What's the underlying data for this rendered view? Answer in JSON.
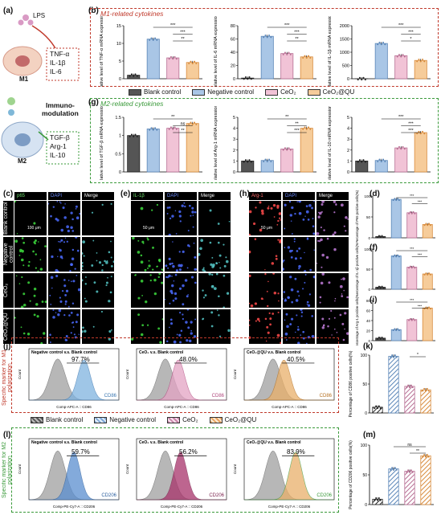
{
  "panel_letters": [
    "(a)",
    "(b)",
    "(c)",
    "(d)",
    "(e)",
    "(f)",
    "(g)",
    "(h)",
    "(i)",
    "(j)",
    "(k)",
    "(l)",
    "(m)"
  ],
  "schematic": {
    "lps": "LPS",
    "m1": "M1",
    "m2": "M2",
    "m1_cytokines": [
      "TNF-α",
      "IL-1β",
      "IL-6"
    ],
    "m2_cytokines": [
      "TGF-β",
      "Arg-1",
      "IL-10"
    ],
    "immuno": "Immuno-",
    "modulation": "modulation"
  },
  "sections": {
    "m1_title": "M1-related cytokines",
    "m2_title": "M2-related cytokines"
  },
  "legend": {
    "items": [
      "Blank control",
      "Negative control",
      "CeO₂",
      "CeO₂@QU"
    ],
    "colors": [
      "#555555",
      "#a9c6e6",
      "#f1c3d6",
      "#f6cc9a"
    ]
  },
  "microscopy": {
    "c_headers": [
      "p65",
      "DAPI",
      "Merge"
    ],
    "e_headers": [
      "IL-1β",
      "DAPI",
      "Merge"
    ],
    "h_headers": [
      "Arg-1",
      "DAPI",
      "Merge"
    ],
    "row_labels": [
      "Blank control",
      "Negative control",
      "CeO₂",
      "CeO₂@QU"
    ],
    "scale1": "100 μm",
    "scale2": "50 μm",
    "scale3": "50 μm"
  },
  "flow": {
    "j_side": "Specific marker for M1 polarization",
    "l_side": "Specific marker for M2 polarization",
    "j_panels": [
      {
        "title": "Negative control v.s. Blank control",
        "percent": "97.7%",
        "marker": "CD86",
        "xlabel": "Comp-APC-A :: CD86"
      },
      {
        "title": "CeO₂ v.s. Blank control",
        "percent": "48.0%",
        "marker": "CD86",
        "xlabel": "Comp-APC-A :: CD86"
      },
      {
        "title": "CeO₂@QU v.s. Blank control",
        "percent": "40.5%",
        "marker": "CD86",
        "xlabel": "Comp-APC-A :: CD86"
      }
    ],
    "l_panels": [
      {
        "title": "Negative control v.s. Blank control",
        "percent": "59.7%",
        "marker": "CD206",
        "xlabel": "Comp-PE-Cy7-A :: CD206"
      },
      {
        "title": "CeO₂ v.s. Blank control",
        "percent": "56.2%",
        "marker": "CD206",
        "xlabel": "Comp-PE-Cy7-A :: CD206"
      },
      {
        "title": "CeO₂@QU v.s. Blank control",
        "percent": "83.9%",
        "marker": "CD206",
        "xlabel": "Comp-PE-Cy7-A :: CD206"
      }
    ],
    "count_label": "Count"
  },
  "chart_data": [
    {
      "id": "b1",
      "type": "bar",
      "ylabel": "Relative level of TNF-α mRNA expression",
      "ylim": [
        0,
        15
      ],
      "yticks": [
        0,
        5,
        10,
        15
      ],
      "values": [
        1,
        11.2,
        5.9,
        4.6
      ],
      "sig": [
        "***",
        "***",
        "**"
      ]
    },
    {
      "id": "b2",
      "type": "bar",
      "ylabel": "Relative level of IL-6 mRNA expression",
      "ylim": [
        0,
        80
      ],
      "yticks": [
        0,
        20,
        40,
        60,
        80
      ],
      "values": [
        1,
        64,
        38,
        33
      ],
      "sig": [
        "***",
        "***",
        "**"
      ]
    },
    {
      "id": "b3",
      "type": "bar",
      "ylabel": "Relative level of IL-1β mRNA expression",
      "ylim": [
        0,
        2000
      ],
      "yticks": [
        0,
        500,
        1000,
        1500,
        2000
      ],
      "values": [
        1,
        1330,
        870,
        690
      ],
      "sig": [
        "***",
        "***",
        "*"
      ]
    },
    {
      "id": "g1",
      "type": "bar",
      "ylabel": "Relative level of TGF-β mRNA expression",
      "ylim": [
        0,
        1.5
      ],
      "yticks": [
        0,
        0.5,
        1.0,
        1.5
      ],
      "values": [
        1.0,
        1.18,
        1.2,
        1.33
      ],
      "sig": [
        "**",
        "ns",
        "**"
      ]
    },
    {
      "id": "g2",
      "type": "bar",
      "ylabel": "Relative level of Arg-1 mRNA expression",
      "ylim": [
        0,
        5
      ],
      "yticks": [
        0,
        1,
        2,
        3,
        4,
        5
      ],
      "values": [
        1,
        1.05,
        2.1,
        4.0
      ],
      "sig": [
        "**",
        "**",
        "***"
      ]
    },
    {
      "id": "g3",
      "type": "bar",
      "ylabel": "Relative level of IL-10 mRNA expression",
      "ylim": [
        0,
        5
      ],
      "yticks": [
        0,
        1,
        2,
        3,
        4,
        5
      ],
      "values": [
        1,
        1.05,
        2.2,
        3.6
      ],
      "sig": [
        "***",
        "***",
        "***"
      ]
    },
    {
      "id": "d",
      "type": "bar",
      "ylabel": "Percentage of P65 positive cells(%)",
      "ylim": [
        0,
        100
      ],
      "yticks": [
        0,
        50,
        100
      ],
      "values": [
        3,
        92,
        60,
        32
      ],
      "sig": [
        "***",
        "***"
      ]
    },
    {
      "id": "f",
      "type": "bar",
      "ylabel": "Percentage of IL-1β positive cells(%)",
      "ylim": [
        0,
        100
      ],
      "yticks": [
        0,
        50,
        100
      ],
      "values": [
        5,
        83,
        55,
        38
      ],
      "sig": [
        "***",
        "***"
      ]
    },
    {
      "id": "i",
      "type": "bar",
      "ylabel": "Percentage of Arg-1 positive cells(%)",
      "ylim": [
        0,
        80
      ],
      "yticks": [
        0,
        20,
        40,
        60,
        80
      ],
      "values": [
        5,
        22,
        42,
        65
      ],
      "sig": [
        "***",
        "***"
      ]
    },
    {
      "id": "k",
      "type": "bar",
      "ylabel": "Percentage of CD86 positive cells(%)",
      "ylim": [
        0,
        100
      ],
      "yticks": [
        0,
        50,
        100
      ],
      "values": [
        10,
        98,
        46,
        40
      ],
      "sig": [
        "*"
      ]
    },
    {
      "id": "m",
      "type": "bar",
      "ylabel": "Percentage of CD206 positive cells(%)",
      "ylim": [
        0,
        100
      ],
      "yticks": [
        0,
        50,
        100
      ],
      "values": [
        9,
        60,
        56,
        82
      ],
      "sig": [
        "ns",
        "**"
      ]
    }
  ]
}
